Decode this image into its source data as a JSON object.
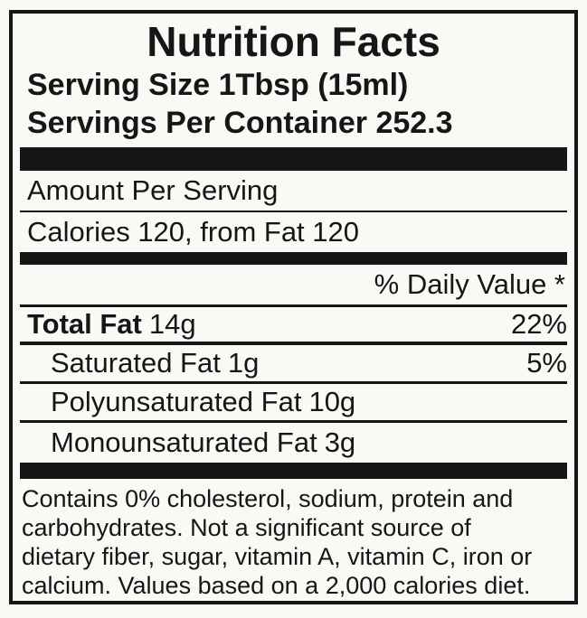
{
  "colors": {
    "ink": "#161616",
    "paper": "#fbf9f6"
  },
  "label": {
    "title": "Nutrition Facts",
    "serving_size": "Serving Size 1Tbsp (15ml)",
    "servings_per_container": "Servings Per Container 252.3",
    "amount_per_serving": "Amount Per Serving",
    "calories": "Calories 120, from Fat 120",
    "daily_value_header": "% Daily Value *",
    "nutrients": [
      {
        "name": "Total Fat",
        "amount": "14g",
        "daily_value": "22%"
      },
      {
        "name": "Saturated Fat",
        "amount": "1g",
        "daily_value": "5%"
      },
      {
        "name": "Polyunsaturated Fat",
        "amount": "10g",
        "daily_value": ""
      },
      {
        "name": "Monounsaturated Fat",
        "amount": "3g",
        "daily_value": ""
      }
    ],
    "footnote_lines": [
      "Contains 0% cholesterol, sodium, protein and",
      "carbohydrates. Not a significant source of",
      "dietary fiber, sugar, vitamin A, vitamin C, iron or",
      "calcium. Values based on a 2,000 calories diet."
    ]
  }
}
